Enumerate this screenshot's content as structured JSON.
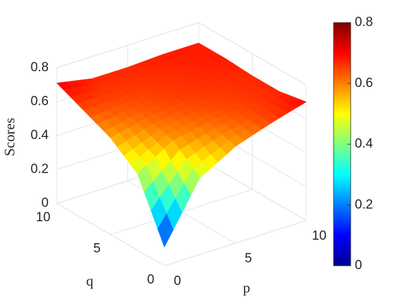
{
  "chart_data": {
    "type": "surface",
    "xlabel": "p",
    "ylabel": "q",
    "zlabel": "Scores",
    "x": [
      0,
      2.5,
      5,
      7.5,
      10
    ],
    "y": [
      0,
      2.5,
      5,
      7.5,
      10
    ],
    "z": [
      [
        0.11,
        0.45,
        0.57,
        0.64,
        0.7
      ],
      [
        0.45,
        0.58,
        0.62,
        0.65,
        0.67
      ],
      [
        0.57,
        0.62,
        0.65,
        0.66,
        0.67
      ],
      [
        0.64,
        0.65,
        0.66,
        0.67,
        0.68
      ],
      [
        0.71,
        0.67,
        0.67,
        0.68,
        0.68
      ]
    ],
    "xlim": [
      0,
      10
    ],
    "xticks": [
      0,
      5,
      10
    ],
    "ylim": [
      0,
      10
    ],
    "yticks": [
      0,
      5,
      10
    ],
    "zlim": [
      0,
      0.8
    ],
    "zticks": [
      0,
      0.2,
      0.4,
      0.6,
      0.8
    ],
    "colormap": "jet",
    "clim": [
      0,
      0.8
    ],
    "cticks": [
      0,
      0.2,
      0.4,
      0.6,
      0.8
    ],
    "grid": true
  }
}
